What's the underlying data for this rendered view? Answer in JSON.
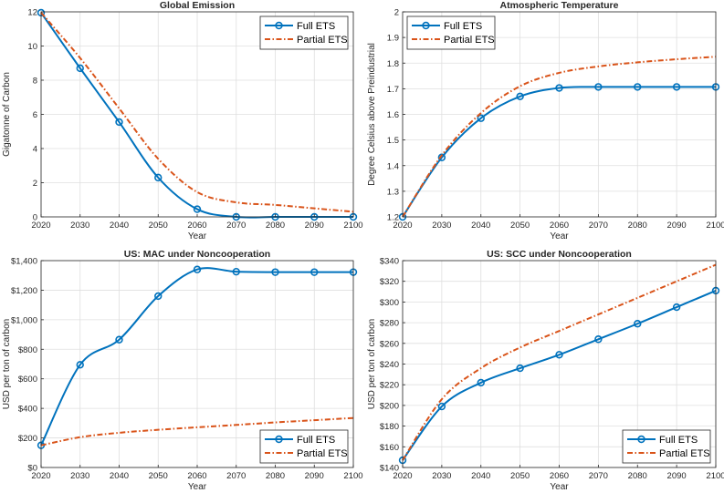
{
  "colors": {
    "full": "#0072BD",
    "partial": "#D95319",
    "grid": "#dfdfdf",
    "axis": "#262626"
  },
  "chart_data": [
    {
      "type": "line",
      "title": "Global Emission",
      "xlabel": "Year",
      "ylabel": "Gigatonne of Carbon",
      "xlim": [
        2020,
        2100
      ],
      "ylim": [
        0,
        12
      ],
      "xticks": [
        2020,
        2030,
        2040,
        2050,
        2060,
        2070,
        2080,
        2090,
        2100
      ],
      "xtick_labels": [
        "2020",
        "2030",
        "2040",
        "2050",
        "2060",
        "2070",
        "2080",
        "2090",
        "2100"
      ],
      "yticks": [
        0,
        2,
        4,
        6,
        8,
        10,
        12
      ],
      "ytick_labels": [
        "0",
        "2",
        "4",
        "6",
        "8",
        "10",
        "12"
      ],
      "grid": true,
      "legend_position": "top-right",
      "series": [
        {
          "name": "Full ETS",
          "style": "solid-markers",
          "x": [
            2020,
            2030,
            2040,
            2050,
            2060,
            2070,
            2080,
            2090,
            2100
          ],
          "values": [
            11.95,
            8.7,
            5.55,
            2.3,
            0.45,
            0.0,
            0.0,
            0.0,
            0.0
          ]
        },
        {
          "name": "Partial ETS",
          "style": "dash-dot",
          "x": [
            2020,
            2030,
            2040,
            2050,
            2060,
            2070,
            2080,
            2090,
            2100
          ],
          "values": [
            11.95,
            9.3,
            6.35,
            3.4,
            1.45,
            0.85,
            0.7,
            0.5,
            0.3
          ]
        }
      ]
    },
    {
      "type": "line",
      "title": "Atmospheric Temperature",
      "xlabel": "Year",
      "ylabel": "Degree Celsius above Preindustrial",
      "xlim": [
        2020,
        2100
      ],
      "ylim": [
        1.2,
        2.0
      ],
      "xticks": [
        2020,
        2030,
        2040,
        2050,
        2060,
        2070,
        2080,
        2090,
        2100
      ],
      "xtick_labels": [
        "2020",
        "2030",
        "2040",
        "2050",
        "2060",
        "2070",
        "2080",
        "2090",
        "2100"
      ],
      "yticks": [
        1.2,
        1.3,
        1.4,
        1.5,
        1.6,
        1.7,
        1.8,
        1.9,
        2.0
      ],
      "ytick_labels": [
        "1.2",
        "1.3",
        "1.4",
        "1.5",
        "1.6",
        "1.7",
        "1.8",
        "1.9",
        "2"
      ],
      "grid": true,
      "legend_position": "top-left",
      "series": [
        {
          "name": "Full ETS",
          "style": "solid-markers",
          "x": [
            2020,
            2030,
            2040,
            2050,
            2060,
            2070,
            2080,
            2090,
            2100
          ],
          "values": [
            1.2,
            1.432,
            1.585,
            1.67,
            1.703,
            1.707,
            1.707,
            1.707,
            1.707
          ]
        },
        {
          "name": "Partial ETS",
          "style": "dash-dot",
          "x": [
            2020,
            2030,
            2040,
            2050,
            2060,
            2070,
            2080,
            2090,
            2100
          ],
          "values": [
            1.2,
            1.44,
            1.605,
            1.71,
            1.762,
            1.787,
            1.803,
            1.815,
            1.825
          ]
        }
      ]
    },
    {
      "type": "line",
      "title": "US: MAC under Noncooperation",
      "xlabel": "Year",
      "ylabel": "USD per ton of carbon",
      "xlim": [
        2020,
        2100
      ],
      "ylim": [
        0,
        1400
      ],
      "xticks": [
        2020,
        2030,
        2040,
        2050,
        2060,
        2070,
        2080,
        2090,
        2100
      ],
      "xtick_labels": [
        "2020",
        "2030",
        "2040",
        "2050",
        "2060",
        "2070",
        "2080",
        "2090",
        "2100"
      ],
      "yticks": [
        0,
        200,
        400,
        600,
        800,
        1000,
        1200,
        1400
      ],
      "ytick_labels": [
        "$0",
        "$200",
        "$400",
        "$600",
        "$800",
        "$1,000",
        "$1,200",
        "$1,400"
      ],
      "grid": true,
      "legend_position": "bottom-right",
      "series": [
        {
          "name": "Full ETS",
          "style": "solid-markers",
          "x": [
            2020,
            2030,
            2040,
            2050,
            2060,
            2070,
            2080,
            2090,
            2100
          ],
          "values": [
            150,
            695,
            865,
            1160,
            1340,
            1325,
            1322,
            1322,
            1322
          ]
        },
        {
          "name": "Partial ETS",
          "style": "dash-dot",
          "x": [
            2020,
            2030,
            2040,
            2050,
            2060,
            2070,
            2080,
            2090,
            2100
          ],
          "values": [
            150,
            205,
            235,
            255,
            272,
            288,
            305,
            320,
            335
          ]
        }
      ]
    },
    {
      "type": "line",
      "title": "US: SCC under Noncooperation",
      "xlabel": "Year",
      "ylabel": "USD per ton of carbon",
      "xlim": [
        2020,
        2100
      ],
      "ylim": [
        140,
        340
      ],
      "xticks": [
        2020,
        2030,
        2040,
        2050,
        2060,
        2070,
        2080,
        2090,
        2100
      ],
      "xtick_labels": [
        "2020",
        "2030",
        "2040",
        "2050",
        "2060",
        "2070",
        "2080",
        "2090",
        "2100"
      ],
      "yticks": [
        140,
        160,
        180,
        200,
        220,
        240,
        260,
        280,
        300,
        320,
        340
      ],
      "ytick_labels": [
        "$140",
        "$160",
        "$180",
        "$200",
        "$220",
        "$240",
        "$260",
        "$280",
        "$300",
        "$320",
        "$340"
      ],
      "grid": true,
      "legend_position": "bottom-right",
      "series": [
        {
          "name": "Full ETS",
          "style": "solid-markers",
          "x": [
            2020,
            2030,
            2040,
            2050,
            2060,
            2070,
            2080,
            2090,
            2100
          ],
          "values": [
            147,
            199,
            222,
            236,
            249,
            264,
            279,
            295,
            311
          ]
        },
        {
          "name": "Partial ETS",
          "style": "dash-dot",
          "x": [
            2020,
            2030,
            2040,
            2050,
            2060,
            2070,
            2080,
            2090,
            2100
          ],
          "values": [
            147,
            206,
            236,
            256,
            272,
            288,
            304,
            320,
            336
          ]
        }
      ]
    }
  ]
}
